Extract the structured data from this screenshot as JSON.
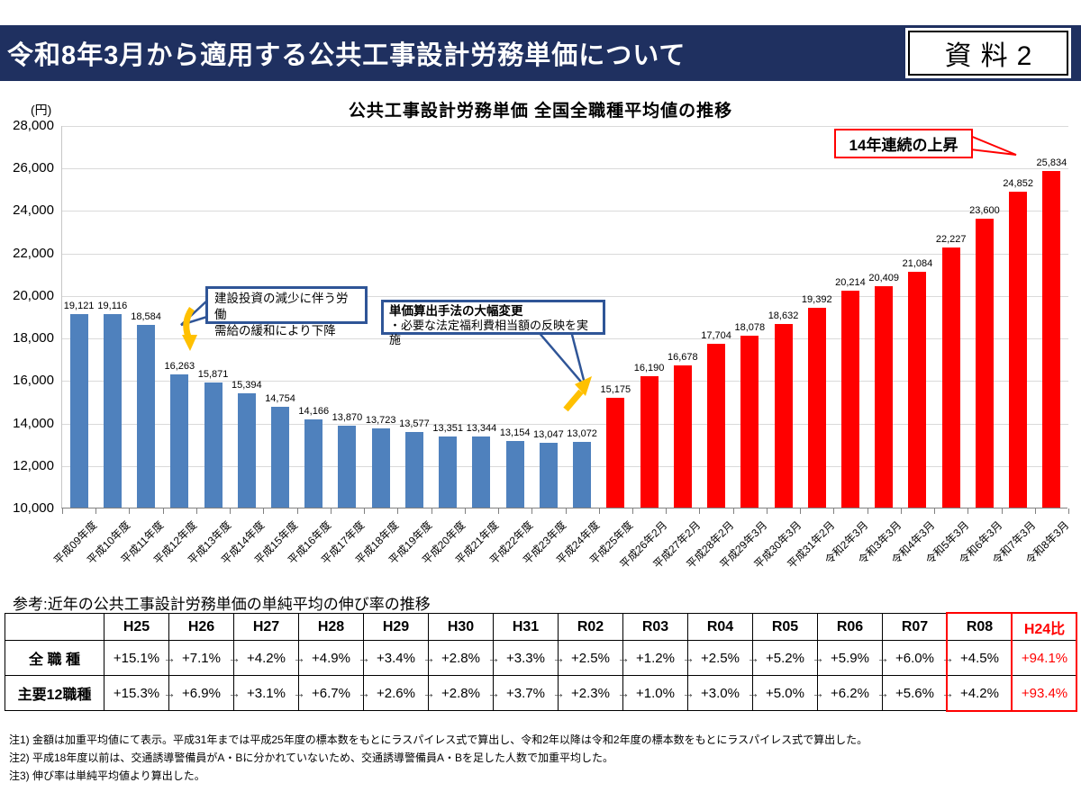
{
  "header": {
    "title": "令和8年3月から適用する公共工事設計労務単価について",
    "doc_label": "資料2"
  },
  "chart": {
    "title": "公共工事設計労務単価 全国全職種平均値の推移",
    "unit_label": "(円)",
    "callouts": {
      "decline": {
        "line1": "建設投資の減少に伴う労働",
        "line2": "需給の緩和により下降"
      },
      "method": {
        "title": "単価算出手法の大幅変更",
        "body": "・必要な法定福利費相当額の反映を実施"
      },
      "streak": {
        "text": "14年連続の上昇"
      }
    }
  },
  "chart_data": {
    "type": "bar",
    "title": "公共工事設計労務単価 全国全職種平均値の推移",
    "ylabel": "(円)",
    "xlabel": "",
    "ylim": [
      10000,
      28000
    ],
    "ytick_step": 2000,
    "grid": true,
    "legend": "none",
    "categories": [
      "平成09年度",
      "平成10年度",
      "平成11年度",
      "平成12年度",
      "平成13年度",
      "平成14年度",
      "平成15年度",
      "平成16年度",
      "平成17年度",
      "平成18年度",
      "平成19年度",
      "平成20年度",
      "平成21年度",
      "平成22年度",
      "平成23年度",
      "平成24年度",
      "平成25年度",
      "平成26年2月",
      "平成27年2月",
      "平成28年2月",
      "平成29年3月",
      "平成30年3月",
      "平成31年2月",
      "令和2年3月",
      "令和3年3月",
      "令和4年3月",
      "令和5年3月",
      "令和6年3月",
      "令和7年3月",
      "令和8年3月"
    ],
    "values": [
      19121,
      19116,
      18584,
      16263,
      15871,
      15394,
      14754,
      14166,
      13870,
      13723,
      13577,
      13351,
      13344,
      13154,
      13047,
      13072,
      15175,
      16190,
      16678,
      17704,
      18078,
      18632,
      19392,
      20214,
      20409,
      21084,
      22227,
      23600,
      24852,
      25834
    ],
    "blue_count": 16,
    "color_blue": "#4F81BD",
    "color_red": "#FF0000"
  },
  "table": {
    "title": "参考:近年の公共工事設計労務単価の単純平均の伸び率の推移",
    "columns": [
      "",
      "H25",
      "H26",
      "H27",
      "H28",
      "H29",
      "H30",
      "H31",
      "R02",
      "R03",
      "R04",
      "R05",
      "R06",
      "R07",
      "R08",
      "H24比"
    ],
    "arrow": "→",
    "rows": [
      {
        "label": "全 職 種",
        "values": [
          "+15.1%",
          "+7.1%",
          "+4.2%",
          "+4.9%",
          "+3.4%",
          "+2.8%",
          "+3.3%",
          "+2.5%",
          "+1.2%",
          "+2.5%",
          "+5.2%",
          "+5.9%",
          "+6.0%",
          "+4.5%"
        ],
        "h24_ratio": "+94.1%"
      },
      {
        "label": "主要12職種",
        "values": [
          "+15.3%",
          "+6.9%",
          "+3.1%",
          "+6.7%",
          "+2.6%",
          "+2.8%",
          "+3.7%",
          "+2.3%",
          "+1.0%",
          "+3.0%",
          "+5.0%",
          "+6.2%",
          "+5.6%",
          "+4.2%"
        ],
        "h24_ratio": "+93.4%"
      }
    ]
  },
  "notes": [
    "注1) 金額は加重平均値にて表示。平成31年までは平成25年度の標本数をもとにラスパイレス式で算出し、令和2年以降は令和2年度の標本数をもとにラスパイレス式で算出した。",
    "注2) 平成18年度以前は、交通誘導警備員がA・Bに分かれていないため、交通誘導警備員A・Bを足した人数で加重平均した。",
    "注3) 伸び率は単純平均値より算出した。"
  ]
}
